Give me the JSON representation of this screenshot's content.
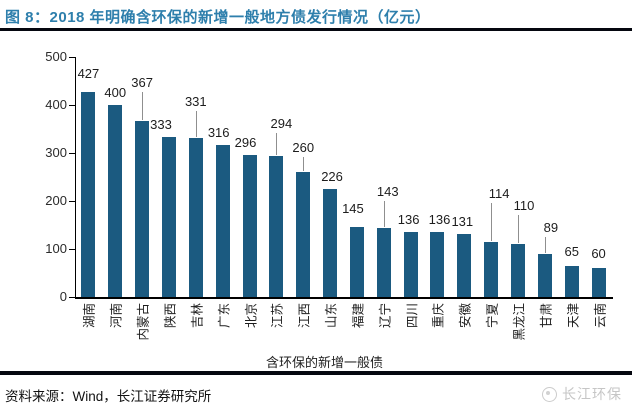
{
  "header": {
    "title": "图 8：2018 年明确含环保的新增一般地方债发行情况（亿元）"
  },
  "chart_data": {
    "type": "bar",
    "title": "2018 年明确含环保的新增一般地方债发行情况",
    "unit": "亿元",
    "categories": [
      "湖南",
      "河南",
      "内蒙古",
      "陕西",
      "吉林",
      "广东",
      "北京",
      "江苏",
      "江西",
      "山东",
      "福建",
      "辽宁",
      "四川",
      "重庆",
      "安徽",
      "宁夏",
      "黑龙江",
      "甘肃",
      "天津",
      "云南"
    ],
    "values": [
      427,
      400,
      367,
      333,
      331,
      316,
      296,
      294,
      260,
      226,
      145,
      143,
      136,
      136,
      131,
      114,
      110,
      89,
      65,
      60
    ],
    "ylim": [
      0,
      500
    ],
    "yticks": [
      0,
      100,
      200,
      300,
      400,
      500
    ],
    "xlabel": "",
    "ylabel": "",
    "grid": false,
    "legend": [
      "含环保的新增一般债"
    ],
    "legend_position": "bottom",
    "bar_color": "#1B5A80",
    "label_color": "#1d1d1d",
    "leader_color": "#8f8f8f",
    "title_color": "#2E7FAC",
    "label_lift": [
      6,
      0,
      26,
      0,
      24,
      0,
      0,
      20,
      12,
      0,
      6,
      24,
      0,
      0,
      0,
      36,
      26,
      14,
      2,
      2
    ],
    "label_leader": [
      false,
      false,
      true,
      false,
      true,
      false,
      false,
      true,
      true,
      false,
      false,
      true,
      false,
      false,
      false,
      true,
      true,
      true,
      false,
      false
    ],
    "label_dx": [
      0,
      0,
      0,
      -8,
      0,
      -4,
      -4,
      5,
      0,
      2,
      -4,
      4,
      -2,
      2,
      -2,
      8,
      6,
      6,
      0,
      0
    ]
  },
  "footer": {
    "source": "资料来源：Wind，长江证券研究所",
    "watermark": "长江环保"
  }
}
